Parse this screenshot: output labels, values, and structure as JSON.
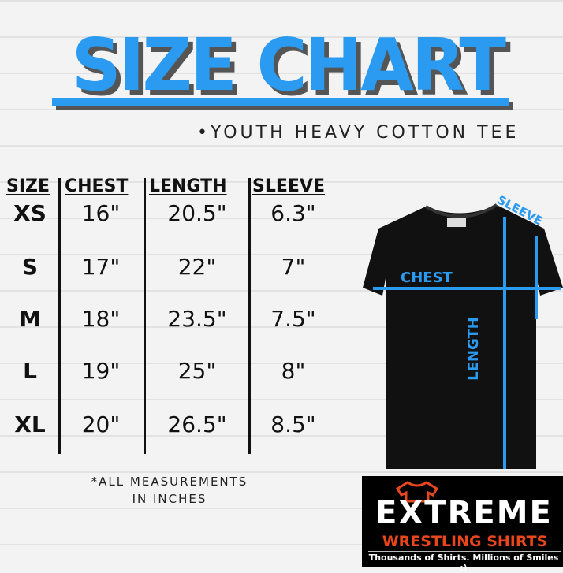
{
  "title": "SIZE CHART",
  "subtitle": "•YOUTH HEAVY COTTON TEE",
  "table": {
    "headers": [
      "SIZE",
      "CHEST",
      "LENGTH",
      "SLEEVE"
    ],
    "rows": [
      [
        "XS",
        "16\"",
        "20.5\"",
        "6.3\""
      ],
      [
        "S",
        "17\"",
        "22\"",
        "7\""
      ],
      [
        "M",
        "18\"",
        "23.5\"",
        "7.5\""
      ],
      [
        "L",
        "19\"",
        "25\"",
        "8\""
      ],
      [
        "XL",
        "20\"",
        "26.5\"",
        "8.5\""
      ]
    ]
  },
  "diagram": {
    "chest": "CHEST",
    "length": "LENGTH",
    "sleeve": "SLEEVE",
    "accent": "#2a9bf0"
  },
  "note": {
    "line1": "*ALL MEASUREMENTS",
    "line2": "IN INCHES"
  },
  "logo": {
    "name": "EXTREME",
    "sub": "WRESTLING SHIRTS",
    "tagline": "Thousands of Shirts. Millions of Smiles :)"
  }
}
